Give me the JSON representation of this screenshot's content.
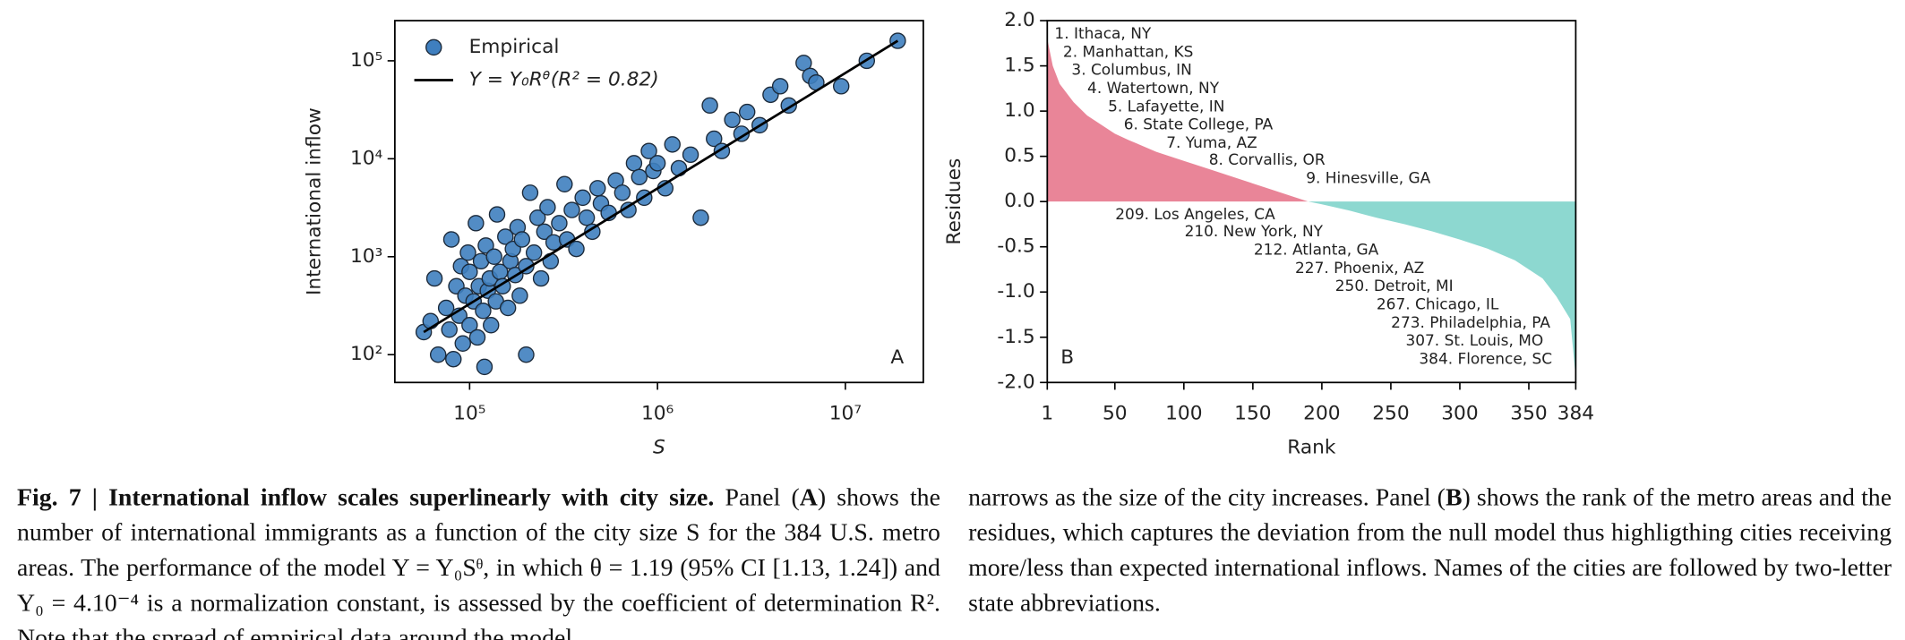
{
  "chart_data": [
    {
      "type": "scatter",
      "xlabel": "S",
      "ylabel": "International inflow",
      "log_x": true,
      "log_y": true,
      "xlim": [
        40000,
        26000000
      ],
      "ylim": [
        52,
        257000
      ],
      "xticks": [
        {
          "value": 100000,
          "label": "10⁵"
        },
        {
          "value": 1000000,
          "label": "10⁶"
        },
        {
          "value": 10000000,
          "label": "10⁷"
        }
      ],
      "yticks": [
        {
          "value": 100,
          "label": "10²"
        },
        {
          "value": 1000,
          "label": "10³"
        },
        {
          "value": 10000,
          "label": "10⁴"
        },
        {
          "value": 100000,
          "label": "10⁵"
        }
      ],
      "series": [
        {
          "name": "Empirical",
          "color": "#3f7fbf",
          "x": [
            57000,
            62000,
            65000,
            68000,
            75000,
            78000,
            80000,
            82000,
            85000,
            88000,
            90000,
            92000,
            95000,
            98000,
            100000,
            100000,
            105000,
            108000,
            110000,
            112000,
            115000,
            118000,
            120000,
            122000,
            125000,
            128000,
            130000,
            135000,
            138000,
            140000,
            145000,
            150000,
            155000,
            160000,
            165000,
            170000,
            175000,
            180000,
            185000,
            190000,
            200000,
            200000,
            210000,
            220000,
            230000,
            240000,
            250000,
            260000,
            270000,
            280000,
            300000,
            320000,
            330000,
            350000,
            370000,
            400000,
            420000,
            450000,
            480000,
            500000,
            550000,
            600000,
            650000,
            700000,
            750000,
            800000,
            850000,
            900000,
            950000,
            1000000,
            1100000,
            1200000,
            1300000,
            1500000,
            1700000,
            1900000,
            2000000,
            2200000,
            2500000,
            2800000,
            3000000,
            3500000,
            4000000,
            4500000,
            5000000,
            6000000,
            6500000,
            7000000,
            9500000,
            13000000,
            19000000
          ],
          "values": [
            170,
            220,
            600,
            100,
            300,
            180,
            1500,
            90,
            500,
            250,
            800,
            130,
            400,
            1100,
            200,
            700,
            350,
            2200,
            150,
            500,
            900,
            280,
            75,
            1300,
            450,
            600,
            200,
            1000,
            350,
            2700,
            700,
            500,
            1600,
            300,
            900,
            1200,
            650,
            2000,
            400,
            1500,
            100,
            800,
            4500,
            1100,
            2500,
            600,
            1800,
            3200,
            900,
            1400,
            2200,
            5500,
            1500,
            3000,
            1200,
            4000,
            2500,
            1800,
            5000,
            3500,
            2800,
            6000,
            4500,
            3000,
            9000,
            6500,
            4000,
            12000,
            7500,
            9000,
            5000,
            14000,
            8000,
            11000,
            2500,
            35000,
            16000,
            12000,
            25000,
            18000,
            30000,
            22000,
            45000,
            55000,
            35000,
            95000,
            70000,
            60000,
            55000,
            100000,
            160000
          ]
        },
        {
          "name": "Y = Y₀Rᶿ(R² = 0.82)",
          "color": "#000000",
          "x": [
            57000,
            19000000
          ],
          "values": [
            170,
            160000
          ]
        }
      ],
      "legend": "upper left",
      "annotation": "A"
    },
    {
      "type": "area",
      "xlabel": "Rank",
      "ylabel": "Residues",
      "xlim": [
        1,
        384
      ],
      "ylim": [
        -2,
        2
      ],
      "xticks": [
        1,
        50,
        100,
        150,
        200,
        250,
        300,
        350,
        384
      ],
      "yticks": [
        {
          "value": 2,
          "label": "2.0"
        },
        1.5,
        {
          "value": 1,
          "label": "1.0"
        },
        0.5,
        {
          "value": 0,
          "label": "0.0"
        },
        -0.5,
        {
          "value": -1,
          "label": "-1.0"
        },
        -1.5,
        {
          "value": -2,
          "label": "-2.0"
        }
      ],
      "x": [
        1,
        5,
        10,
        20,
        30,
        40,
        50,
        60,
        80,
        100,
        120,
        140,
        160,
        180,
        190,
        200,
        220,
        240,
        260,
        280,
        300,
        320,
        340,
        360,
        370,
        380,
        384
      ],
      "values": [
        1.8,
        1.5,
        1.3,
        1.1,
        0.95,
        0.85,
        0.75,
        0.68,
        0.55,
        0.45,
        0.35,
        0.25,
        0.15,
        0.05,
        0,
        -0.03,
        -0.1,
        -0.18,
        -0.25,
        -0.33,
        -0.42,
        -0.52,
        -0.65,
        -0.85,
        -1.05,
        -1.3,
        -1.95
      ],
      "positive_color": "#e98598",
      "negative_color": "#8dd8d0",
      "annotations": [
        "1. Ithaca,  NY",
        "2. Manhattan,  KS",
        "3. Columbus,  IN",
        "4. Watertown,  NY",
        "5. Lafayette,  IN",
        "6. State College,  PA",
        "7. Yuma,  AZ",
        "8. Corvallis,  OR",
        "9. Hinesville,  GA",
        "209. Los Angeles,  CA",
        "210. New York,  NY",
        "212. Atlanta,  GA",
        "227. Phoenix,  AZ",
        "250. Detroit,  MI",
        "267. Chicago,  IL",
        "273. Philadelphia,  PA",
        "307. St. Louis,  MO",
        "384. Florence,  SC"
      ],
      "label": "B"
    }
  ],
  "caption": {
    "label": "Fig. 7 |",
    "title": "International inflow scales superlinearly with city size.",
    "left": [
      " Panel (",
      "A",
      ") shows the number of international immigrants as a function of the city size S for the 384 U.S. metro areas. The performance of the model Y = Y₀Sᶿ, in which θ = 1.19 (95% CI [1.13, 1.24]) and Y₀ = 4.10⁻⁴ is a normalization constant, is assessed by the coefficient of determination R². Note that the spread of empirical data around the model"
    ],
    "right": [
      "narrows as the size of the city increases. Panel (",
      "B",
      ") shows the rank of the metro areas and the residues, which captures the deviation from the null model thus highligthing cities receiving more/less than expected international inflows. Names of the cities are followed by two-letter state abbreviations."
    ]
  }
}
